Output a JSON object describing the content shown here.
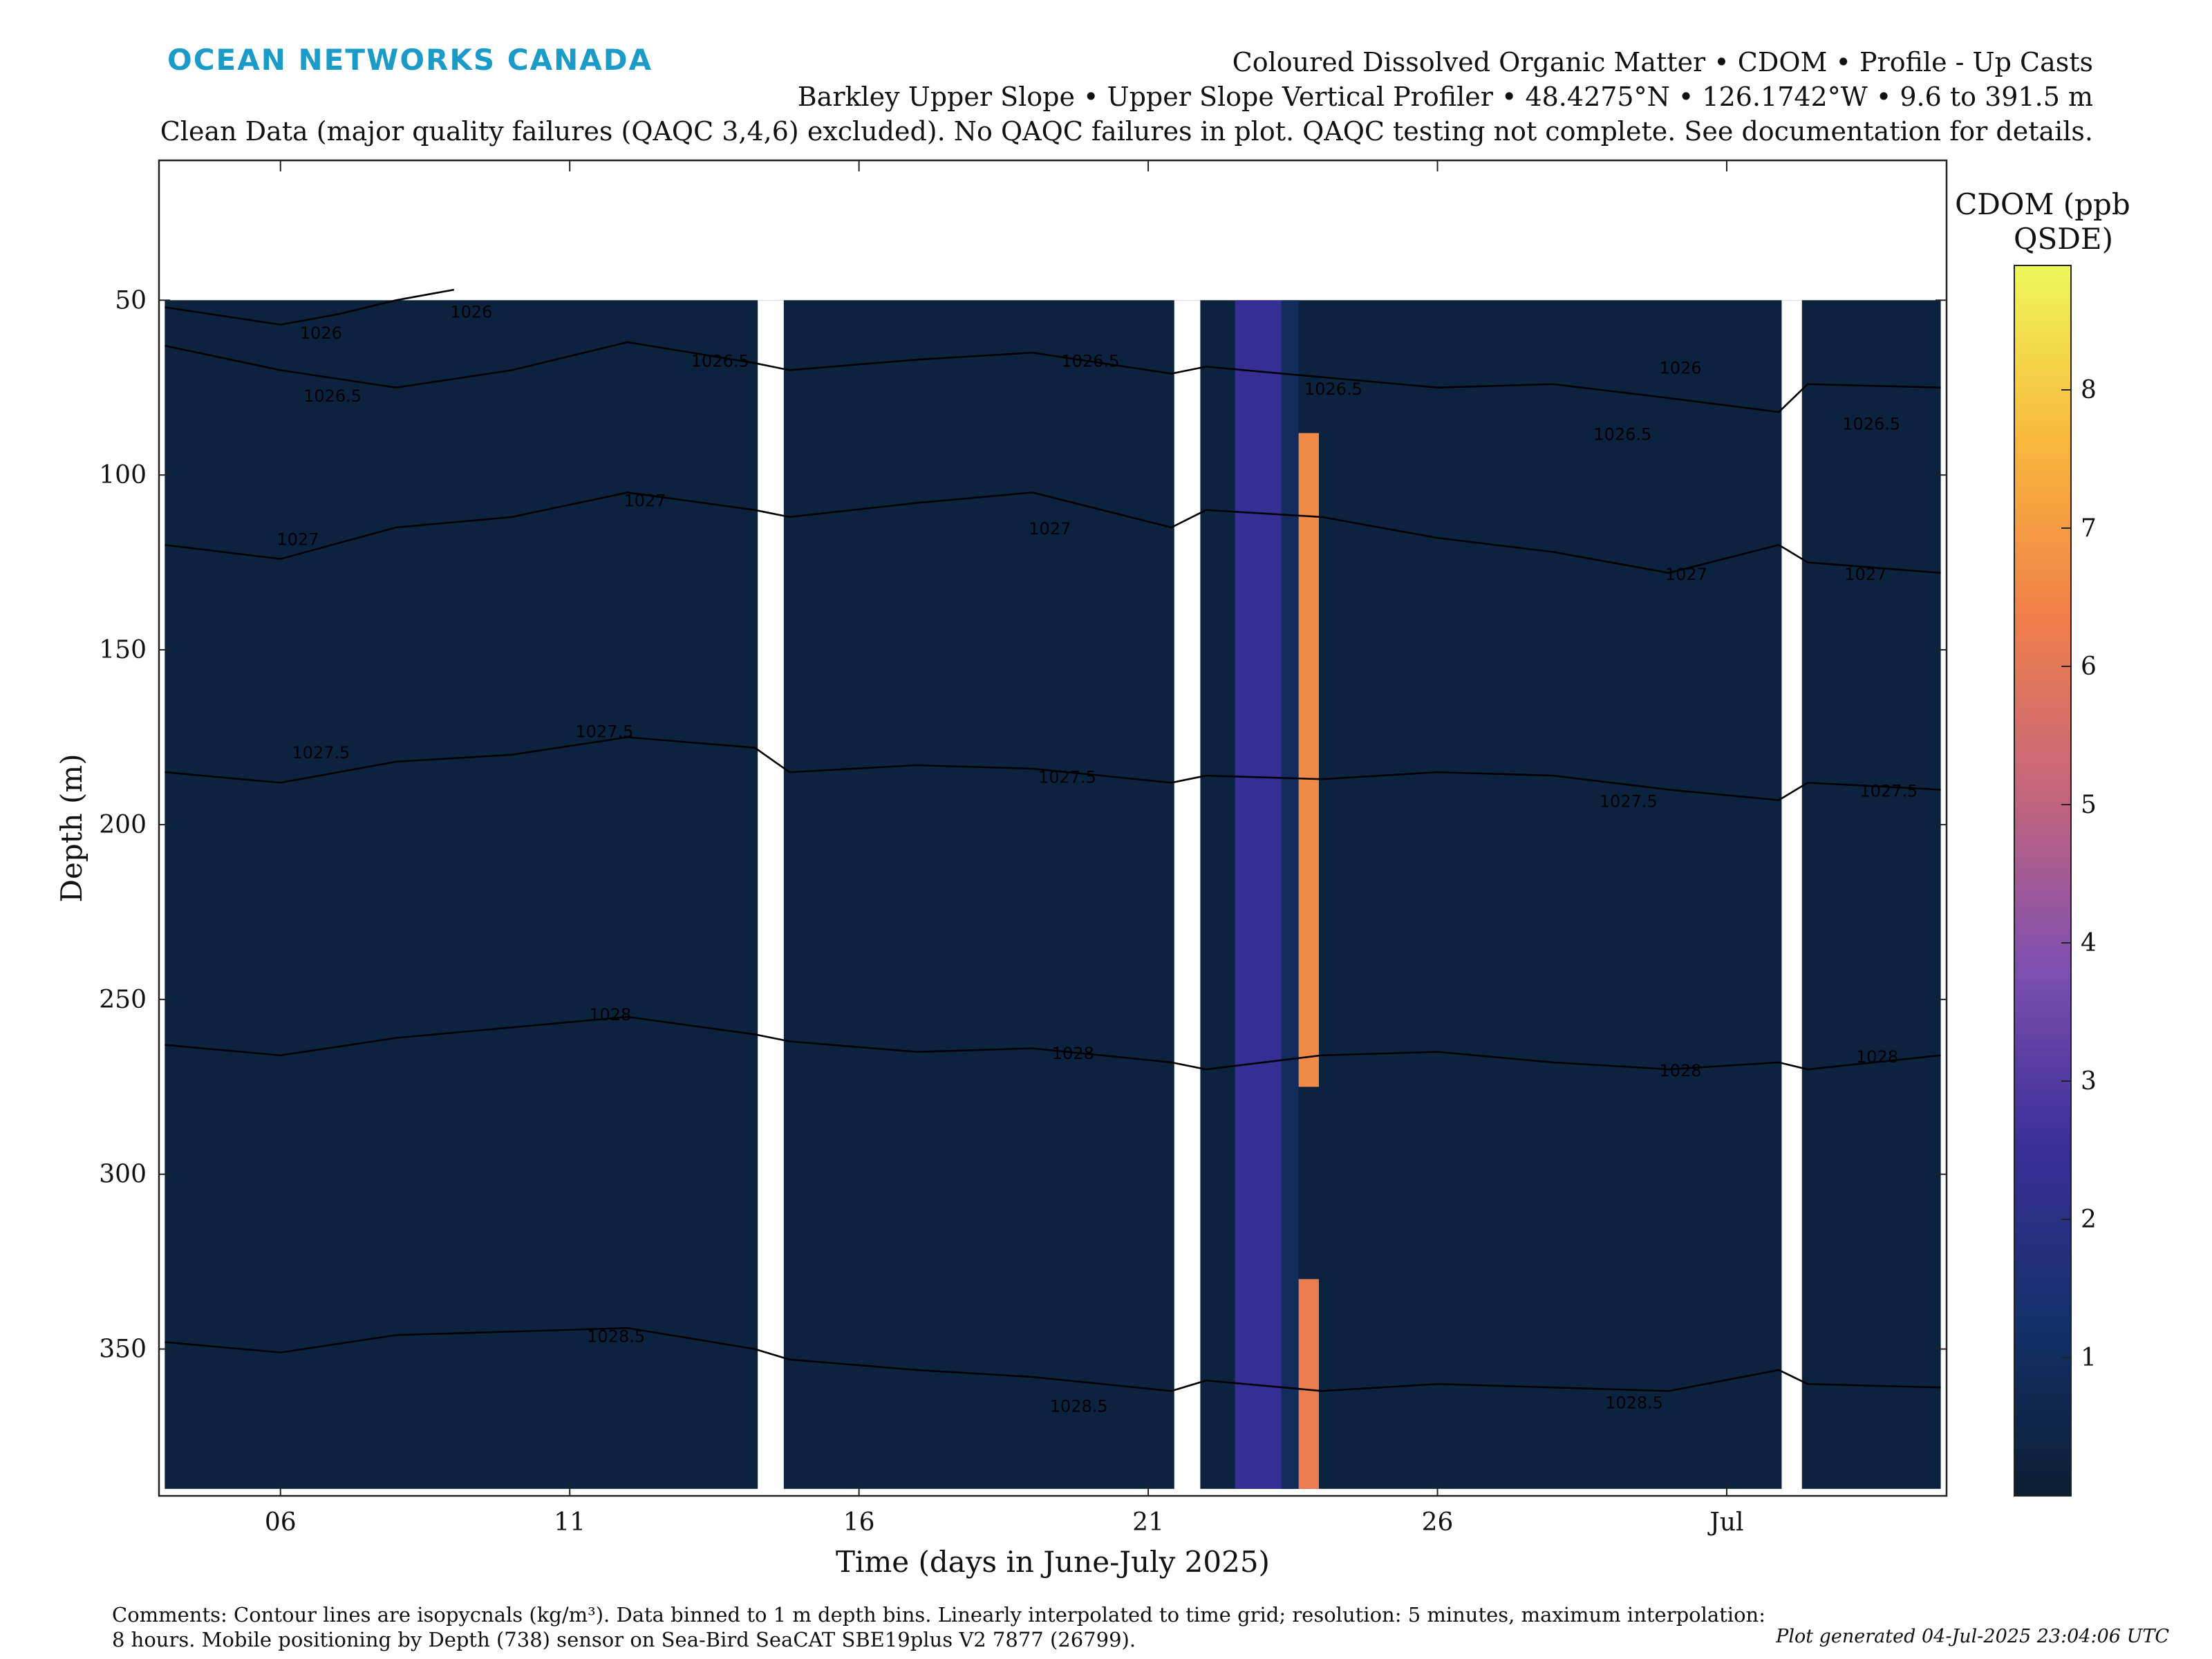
{
  "header": {
    "brand": "OCEAN NETWORKS CANADA",
    "title_line1": "Coloured Dissolved Organic Matter • CDOM • Profile - Up Casts",
    "title_line2": "Barkley Upper Slope • Upper Slope Vertical Profiler • 48.4275°N • 126.1742°W • 9.6 to 391.5 m",
    "title_line3": "Clean Data (major quality failures (QAQC 3,4,6) excluded). No QAQC failures in plot. QAQC testing not complete. See documentation for details."
  },
  "chart_data": {
    "type": "heatmap",
    "xlabel": "Time (days in June-July 2025)",
    "ylabel": "Depth (m)",
    "xlim": [
      3.9,
      34.8
    ],
    "ylim": [
      10,
      392
    ],
    "x_tick_values": [
      6,
      11,
      16,
      21,
      26,
      31
    ],
    "x_tick_labels": [
      "06",
      "11",
      "16",
      "21",
      "26",
      "Jul"
    ],
    "y_tick_values": [
      50,
      100,
      150,
      200,
      250,
      300,
      350
    ],
    "y_tick_labels": [
      "50",
      "100",
      "150",
      "200",
      "250",
      "300",
      "350"
    ],
    "colorbar": {
      "label_line1": "CDOM (ppb",
      "label_line2": "QSDE)",
      "range": [
        0,
        8.9
      ],
      "ticks": [
        1,
        2,
        3,
        4,
        5,
        6,
        7,
        8
      ],
      "tick_labels": [
        "1",
        "2",
        "3",
        "4",
        "5",
        "6",
        "7",
        "8"
      ],
      "colormap": [
        "#0a1f33",
        "#14306a",
        "#3a2f98",
        "#7e4fb0",
        "#c4657c",
        "#f07f4a",
        "#f8b73c",
        "#eef75a"
      ]
    },
    "background_value": 0.3,
    "data_extent": {
      "x": [
        4.0,
        34.7
      ],
      "y_top": 50,
      "y_bottom": 390
    },
    "gaps": [
      {
        "x": [
          14.25,
          14.7
        ],
        "y": [
          50,
          392
        ]
      },
      {
        "x": [
          21.45,
          21.9
        ],
        "y": [
          50,
          392
        ]
      },
      {
        "x": [
          31.95,
          32.3
        ],
        "y": [
          50,
          392
        ]
      }
    ],
    "high_bands": [
      {
        "x": [
          22.5,
          23.3
        ],
        "y": [
          50,
          390
        ],
        "value": 2.4
      },
      {
        "x": [
          23.3,
          23.6
        ],
        "y": [
          50,
          390
        ],
        "value": 1.0
      },
      {
        "x": [
          23.6,
          23.95
        ],
        "y": [
          88,
          275
        ],
        "value": 6.6
      },
      {
        "x": [
          23.6,
          23.95
        ],
        "y": [
          330,
          390
        ],
        "value": 6.2
      }
    ],
    "isopycnals": [
      {
        "label": "1026",
        "values": [
          [
            4.0,
            52
          ],
          [
            6,
            57
          ],
          [
            7,
            54
          ],
          [
            8,
            50
          ],
          [
            9,
            47
          ]
        ]
      },
      {
        "label": "1026.5",
        "values": [
          [
            4.0,
            63
          ],
          [
            6,
            70
          ],
          [
            8,
            75
          ],
          [
            10,
            70
          ],
          [
            12,
            62
          ],
          [
            14.2,
            68
          ],
          [
            14.8,
            70
          ],
          [
            17,
            67
          ],
          [
            19,
            65
          ],
          [
            21.4,
            71
          ],
          [
            22,
            69
          ],
          [
            24,
            72
          ],
          [
            26,
            75
          ],
          [
            28,
            74
          ],
          [
            30,
            78
          ],
          [
            31.9,
            82
          ],
          [
            32.4,
            74
          ],
          [
            34.7,
            75
          ]
        ]
      },
      {
        "label": "1027",
        "values": [
          [
            4.0,
            120
          ],
          [
            6,
            124
          ],
          [
            8,
            115
          ],
          [
            10,
            112
          ],
          [
            12,
            105
          ],
          [
            14.2,
            110
          ],
          [
            14.8,
            112
          ],
          [
            17,
            108
          ],
          [
            19,
            105
          ],
          [
            21.4,
            115
          ],
          [
            22,
            110
          ],
          [
            24,
            112
          ],
          [
            26,
            118
          ],
          [
            28,
            122
          ],
          [
            30,
            128
          ],
          [
            31.9,
            120
          ],
          [
            32.4,
            125
          ],
          [
            34.7,
            128
          ]
        ]
      },
      {
        "label": "1027.5",
        "values": [
          [
            4.0,
            185
          ],
          [
            6,
            188
          ],
          [
            8,
            182
          ],
          [
            10,
            180
          ],
          [
            12,
            175
          ],
          [
            14.2,
            178
          ],
          [
            14.8,
            185
          ],
          [
            17,
            183
          ],
          [
            19,
            184
          ],
          [
            21.4,
            188
          ],
          [
            22,
            186
          ],
          [
            24,
            187
          ],
          [
            26,
            185
          ],
          [
            28,
            186
          ],
          [
            30,
            190
          ],
          [
            31.9,
            193
          ],
          [
            32.4,
            188
          ],
          [
            34.7,
            190
          ]
        ]
      },
      {
        "label": "1028",
        "values": [
          [
            4.0,
            263
          ],
          [
            6,
            266
          ],
          [
            8,
            261
          ],
          [
            10,
            258
          ],
          [
            12,
            255
          ],
          [
            14.2,
            260
          ],
          [
            14.8,
            262
          ],
          [
            17,
            265
          ],
          [
            19,
            264
          ],
          [
            21.4,
            268
          ],
          [
            22,
            270
          ],
          [
            24,
            266
          ],
          [
            26,
            265
          ],
          [
            28,
            268
          ],
          [
            30,
            270
          ],
          [
            31.9,
            268
          ],
          [
            32.4,
            270
          ],
          [
            34.7,
            266
          ]
        ]
      },
      {
        "label": "1028.5",
        "values": [
          [
            4.0,
            348
          ],
          [
            6,
            351
          ],
          [
            8,
            346
          ],
          [
            10,
            345
          ],
          [
            12,
            344
          ],
          [
            14.2,
            350
          ],
          [
            14.8,
            353
          ],
          [
            17,
            356
          ],
          [
            19,
            358
          ],
          [
            21.4,
            362
          ],
          [
            22,
            359
          ],
          [
            24,
            362
          ],
          [
            26,
            360
          ],
          [
            28,
            361
          ],
          [
            30,
            362
          ],
          [
            31.9,
            356
          ],
          [
            32.4,
            360
          ],
          [
            34.7,
            361
          ]
        ]
      }
    ],
    "contour_labels": [
      {
        "text": "1026",
        "x": 6.7,
        "y": 61
      },
      {
        "text": "1026",
        "x": 9.3,
        "y": 55
      },
      {
        "text": "1026.5",
        "x": 13.6,
        "y": 69
      },
      {
        "text": "1026.5",
        "x": 6.9,
        "y": 79
      },
      {
        "text": "1026.5",
        "x": 20.0,
        "y": 69
      },
      {
        "text": "1026.5",
        "x": 24.2,
        "y": 77
      },
      {
        "text": "1026",
        "x": 30.2,
        "y": 71
      },
      {
        "text": "1026.5",
        "x": 29.2,
        "y": 90
      },
      {
        "text": "1026.5",
        "x": 33.5,
        "y": 87
      },
      {
        "text": "1027",
        "x": 12.3,
        "y": 109
      },
      {
        "text": "1027",
        "x": 6.3,
        "y": 120
      },
      {
        "text": "1027",
        "x": 19.3,
        "y": 117
      },
      {
        "text": "1027",
        "x": 30.3,
        "y": 130
      },
      {
        "text": "1027",
        "x": 33.4,
        "y": 130
      },
      {
        "text": "1027.5",
        "x": 6.7,
        "y": 181
      },
      {
        "text": "1027.5",
        "x": 11.6,
        "y": 175
      },
      {
        "text": "1027.5",
        "x": 19.6,
        "y": 188
      },
      {
        "text": "1027.5",
        "x": 29.3,
        "y": 195
      },
      {
        "text": "1027.5",
        "x": 33.8,
        "y": 192
      },
      {
        "text": "1028",
        "x": 11.7,
        "y": 256
      },
      {
        "text": "1028",
        "x": 19.7,
        "y": 267
      },
      {
        "text": "1028",
        "x": 30.2,
        "y": 272
      },
      {
        "text": "1028",
        "x": 33.6,
        "y": 268
      },
      {
        "text": "1028.5",
        "x": 11.8,
        "y": 348
      },
      {
        "text": "1028.5",
        "x": 19.8,
        "y": 368
      },
      {
        "text": "1028.5",
        "x": 29.4,
        "y": 367
      }
    ]
  },
  "footer": {
    "comments_line1": "Comments: Contour lines are isopycnals (kg/m³). Data binned to 1 m depth bins. Linearly interpolated to time grid; resolution: 5 minutes, maximum interpolation:",
    "comments_line2": "8 hours. Mobile positioning by Depth (738) sensor on Sea-Bird SeaCAT SBE19plus V2 7877 (26799).",
    "generated": "Plot generated 04-Jul-2025 23:04:06 UTC"
  }
}
